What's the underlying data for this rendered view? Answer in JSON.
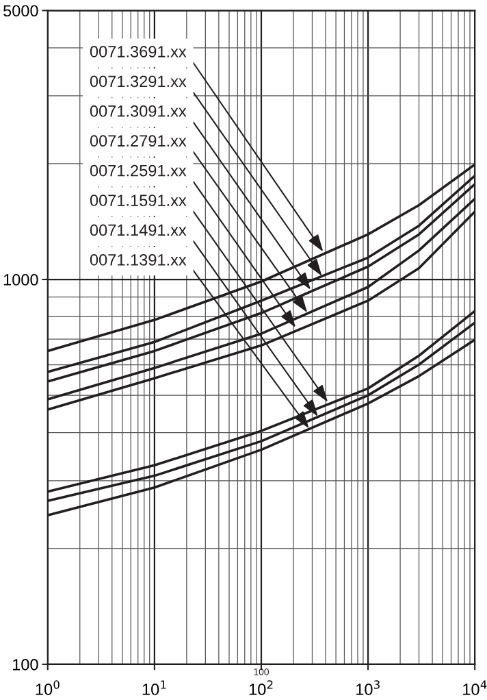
{
  "chart_data": {
    "type": "line",
    "x": [
      1,
      10,
      100,
      1000,
      3000,
      10000
    ],
    "series": [
      {
        "color": "#231f20",
        "values": [
          652,
          785,
          988,
          1310,
          1560,
          1990
        ]
      },
      {
        "color": "#231f20",
        "values": [
          575,
          688,
          881,
          1140,
          1380,
          1860
        ]
      },
      {
        "color": "#231f20",
        "values": [
          543,
          652,
          818,
          1080,
          1310,
          1770
        ]
      },
      {
        "color": "#231f20",
        "values": [
          488,
          589,
          723,
          956,
          1190,
          1620
        ]
      },
      {
        "color": "#231f20",
        "values": [
          459,
          554,
          674,
          881,
          1070,
          1500
        ]
      },
      {
        "color": "#231f20",
        "values": [
          281,
          329,
          404,
          521,
          634,
          828
        ]
      },
      {
        "color": "#231f20",
        "values": [
          266,
          309,
          380,
          500,
          601,
          772
        ]
      },
      {
        "color": "#231f20",
        "values": [
          244,
          288,
          361,
          476,
          561,
          697
        ]
      }
    ],
    "log": "xy",
    "xlim": [
      1,
      10000
    ],
    "ylim": [
      100,
      5000
    ],
    "xticks": [
      {
        "value": 1,
        "label": "10$^{0}$"
      },
      {
        "value": 10,
        "label": "10$^{1}$"
      },
      {
        "value": 100,
        "label": "10$^{2}$"
      },
      {
        "value": 1000,
        "label": "10$^{3}$"
      },
      {
        "value": 10000,
        "label": "10$^{4}$"
      }
    ],
    "yticks": [
      100,
      1000,
      5000
    ],
    "grid": true,
    "line_style": "solid",
    "annotations": [
      {
        "text": "0071.3691.xx",
        "x": 380,
        "y": 1180
      },
      {
        "text": "0071.3291.xx",
        "x": 370,
        "y": 1020
      },
      {
        "text": "0071.3091.xx",
        "x": 290,
        "y": 940
      },
      {
        "text": "0071.2791.xx",
        "x": 270,
        "y": 820
      },
      {
        "text": "0071.2591.xx",
        "x": 210,
        "y": 750
      },
      {
        "text": "0071.1591.xx",
        "x": 420,
        "y": 480
      },
      {
        "text": "0071.1491.xx",
        "x": 340,
        "y": 440
      },
      {
        "text": "0071.1391.xx",
        "x": 280,
        "y": 410
      },
      "100"
    ]
  }
}
